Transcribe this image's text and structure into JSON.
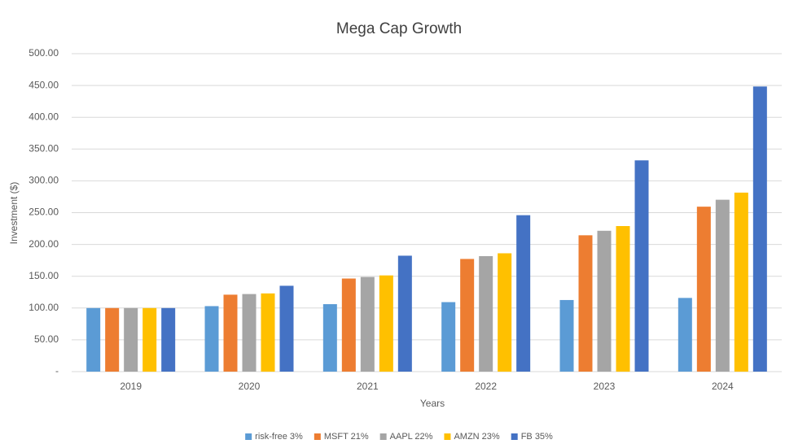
{
  "chart_data": {
    "type": "bar",
    "title": "Mega Cap Growth",
    "x_label": "Years",
    "y_label": "Investment ($)",
    "categories": [
      "2019",
      "2020",
      "2021",
      "2022",
      "2023",
      "2024"
    ],
    "series": [
      {
        "name": "risk-free 3%",
        "color": "#5b9bd5",
        "values": [
          100,
          103,
          106.1,
          109.3,
          112.6,
          115.9
        ]
      },
      {
        "name": "MSFT 21%",
        "color": "#ed7d31",
        "values": [
          100,
          121,
          146.4,
          177.2,
          214.4,
          259.4
        ]
      },
      {
        "name": "AAPL 22%",
        "color": "#a5a5a5",
        "values": [
          100,
          122,
          148.8,
          181.6,
          221.5,
          270.3
        ]
      },
      {
        "name": "AMZN 23%",
        "color": "#ffc000",
        "values": [
          100,
          123,
          151.3,
          186.1,
          228.9,
          281.5
        ]
      },
      {
        "name": "FB 35%",
        "color": "#4472c4",
        "values": [
          100,
          135,
          182.3,
          246,
          332.2,
          448.4
        ]
      }
    ],
    "ylim": [
      0,
      500
    ],
    "yticks": [
      {
        "value": 0,
        "label": "-"
      },
      {
        "value": 50,
        "label": "50.00"
      },
      {
        "value": 100,
        "label": "100.00"
      },
      {
        "value": 150,
        "label": "150.00"
      },
      {
        "value": 200,
        "label": "200.00"
      },
      {
        "value": 250,
        "label": "250.00"
      },
      {
        "value": 300,
        "label": "300.00"
      },
      {
        "value": 350,
        "label": "350.00"
      },
      {
        "value": 400,
        "label": "400.00"
      },
      {
        "value": 450,
        "label": "450.00"
      },
      {
        "value": 500,
        "label": "500.00"
      }
    ],
    "grid": true,
    "legend": "bottom"
  }
}
